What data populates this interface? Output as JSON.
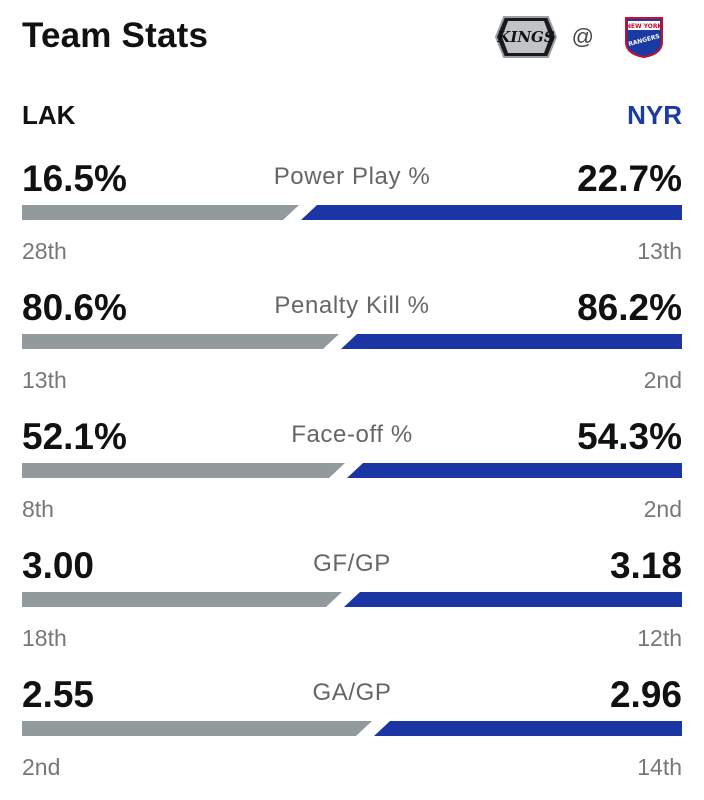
{
  "header": {
    "title": "Team Stats",
    "at_symbol": "@",
    "away_logo_text": "KINGS",
    "home_logo_text_top": "NEW YORK",
    "home_logo_text_bottom": "RANGERS"
  },
  "teams": {
    "away": {
      "abbr": "LAK",
      "color": "#939a9c"
    },
    "home": {
      "abbr": "NYR",
      "color": "#1b36a4"
    }
  },
  "stats": [
    {
      "label": "Power Play %",
      "away_value": "16.5%",
      "home_value": "22.7%",
      "away_rank": "28th",
      "home_rank": "13th",
      "away_share": 0.42
    },
    {
      "label": "Penalty Kill %",
      "away_value": "80.6%",
      "home_value": "86.2%",
      "away_rank": "13th",
      "home_rank": "2nd",
      "away_share": 0.48
    },
    {
      "label": "Face-off %",
      "away_value": "52.1%",
      "home_value": "54.3%",
      "away_rank": "8th",
      "home_rank": "2nd",
      "away_share": 0.49
    },
    {
      "label": "GF/GP",
      "away_value": "3.00",
      "home_value": "3.18",
      "away_rank": "18th",
      "home_rank": "12th",
      "away_share": 0.485
    },
    {
      "label": "GA/GP",
      "away_value": "2.55",
      "home_value": "2.96",
      "away_rank": "2nd",
      "home_rank": "14th",
      "away_share": 0.53
    }
  ]
}
